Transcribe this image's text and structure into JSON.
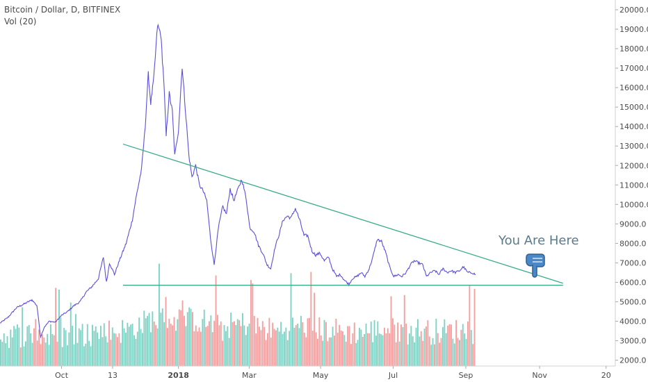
{
  "header": {
    "symbol_line": "Bitcoin / Dollar, D, BITFINEX",
    "volume_line": "Vol (20)"
  },
  "annotation": {
    "text": "You Are Here",
    "icon": "pointing-hand-icon"
  },
  "colors": {
    "price_line": "#5b4fd6",
    "trend_line": "#3aaa8a",
    "vol_up": "#7fd3c4",
    "vol_down": "#f5a0a0",
    "annotation_text": "#5a7a8a",
    "hand_icon": "#4a88c8"
  },
  "chart_data": {
    "type": "line",
    "y_ticks": [
      "2000.0",
      "3000.0",
      "4000.0",
      "5000.0",
      "6000.0",
      "7000.0",
      "8000.0",
      "9000.0",
      "10000.0",
      "11000.0",
      "12000.0",
      "13000.0",
      "14000.0",
      "15000.0",
      "16000.0",
      "17000.0",
      "18000.0",
      "19000.0",
      "20000.0"
    ],
    "x_ticks": [
      {
        "label": "Oct",
        "t": 0.1,
        "bold": false
      },
      {
        "label": "13",
        "t": 0.183,
        "bold": false
      },
      {
        "label": "2018",
        "t": 0.29,
        "bold": true
      },
      {
        "label": "Mar",
        "t": 0.405,
        "bold": false
      },
      {
        "label": "May",
        "t": 0.521,
        "bold": false
      },
      {
        "label": "Jul",
        "t": 0.639,
        "bold": false
      },
      {
        "label": "Sep",
        "t": 0.757,
        "bold": false
      },
      {
        "label": "Nov",
        "t": 0.877,
        "bold": false
      },
      {
        "label": "20",
        "t": 0.985,
        "bold": false
      }
    ],
    "ylim": [
      1700,
      20500
    ],
    "price": [
      [
        0.0,
        3900
      ],
      [
        0.013,
        4200
      ],
      [
        0.027,
        4700
      ],
      [
        0.04,
        4900
      ],
      [
        0.052,
        5100
      ],
      [
        0.06,
        4800
      ],
      [
        0.066,
        3200
      ],
      [
        0.072,
        3700
      ],
      [
        0.08,
        4000
      ],
      [
        0.09,
        3950
      ],
      [
        0.1,
        4300
      ],
      [
        0.11,
        4500
      ],
      [
        0.12,
        4800
      ],
      [
        0.13,
        5000
      ],
      [
        0.14,
        5500
      ],
      [
        0.15,
        5800
      ],
      [
        0.16,
        6200
      ],
      [
        0.168,
        7300
      ],
      [
        0.173,
        6000
      ],
      [
        0.178,
        7000
      ],
      [
        0.186,
        6400
      ],
      [
        0.195,
        7200
      ],
      [
        0.205,
        8000
      ],
      [
        0.215,
        9200
      ],
      [
        0.222,
        10500
      ],
      [
        0.23,
        11800
      ],
      [
        0.236,
        14000
      ],
      [
        0.241,
        16700
      ],
      [
        0.245,
        15200
      ],
      [
        0.25,
        16500
      ],
      [
        0.256,
        19200
      ],
      [
        0.261,
        18800
      ],
      [
        0.266,
        16500
      ],
      [
        0.27,
        13500
      ],
      [
        0.275,
        15700
      ],
      [
        0.28,
        14800
      ],
      [
        0.284,
        12500
      ],
      [
        0.29,
        13800
      ],
      [
        0.296,
        17100
      ],
      [
        0.301,
        15000
      ],
      [
        0.307,
        12500
      ],
      [
        0.312,
        11400
      ],
      [
        0.318,
        12000
      ],
      [
        0.324,
        11000
      ],
      [
        0.33,
        10700
      ],
      [
        0.336,
        10200
      ],
      [
        0.342,
        8300
      ],
      [
        0.348,
        6900
      ],
      [
        0.355,
        8800
      ],
      [
        0.362,
        9900
      ],
      [
        0.368,
        9500
      ],
      [
        0.374,
        10800
      ],
      [
        0.38,
        10200
      ],
      [
        0.387,
        10800
      ],
      [
        0.393,
        11300
      ],
      [
        0.4,
        10300
      ],
      [
        0.406,
        8800
      ],
      [
        0.413,
        8600
      ],
      [
        0.42,
        7900
      ],
      [
        0.427,
        7500
      ],
      [
        0.434,
        6900
      ],
      [
        0.44,
        6700
      ],
      [
        0.447,
        7800
      ],
      [
        0.454,
        8500
      ],
      [
        0.46,
        9200
      ],
      [
        0.467,
        9400
      ],
      [
        0.473,
        9300
      ],
      [
        0.48,
        9800
      ],
      [
        0.487,
        9200
      ],
      [
        0.494,
        8400
      ],
      [
        0.5,
        8400
      ],
      [
        0.507,
        7600
      ],
      [
        0.513,
        7400
      ],
      [
        0.52,
        7500
      ],
      [
        0.527,
        7100
      ],
      [
        0.534,
        7300
      ],
      [
        0.54,
        6700
      ],
      [
        0.547,
        6300
      ],
      [
        0.553,
        6400
      ],
      [
        0.56,
        6100
      ],
      [
        0.567,
        5900
      ],
      [
        0.573,
        6200
      ],
      [
        0.58,
        6300
      ],
      [
        0.587,
        6500
      ],
      [
        0.593,
        6300
      ],
      [
        0.6,
        6700
      ],
      [
        0.606,
        7300
      ],
      [
        0.613,
        8200
      ],
      [
        0.62,
        8100
      ],
      [
        0.627,
        7500
      ],
      [
        0.633,
        6800
      ],
      [
        0.64,
        6300
      ],
      [
        0.647,
        6400
      ],
      [
        0.653,
        6300
      ],
      [
        0.66,
        6500
      ],
      [
        0.667,
        6900
      ],
      [
        0.673,
        7100
      ],
      [
        0.68,
        7000
      ],
      [
        0.687,
        6900
      ],
      [
        0.693,
        6300
      ],
      [
        0.7,
        6500
      ],
      [
        0.707,
        6600
      ],
      [
        0.713,
        6400
      ],
      [
        0.72,
        6700
      ],
      [
        0.727,
        6500
      ],
      [
        0.733,
        6600
      ],
      [
        0.74,
        6500
      ],
      [
        0.747,
        6600
      ],
      [
        0.753,
        6800
      ],
      [
        0.76,
        6500
      ],
      [
        0.767,
        6500
      ],
      [
        0.773,
        6400
      ]
    ],
    "trend_lines": [
      {
        "name": "",
        "points": [
          [
            0.2,
            13100
          ],
          [
            0.915,
            5950
          ]
        ]
      },
      {
        "name": "",
        "points": [
          [
            0.2,
            5850
          ],
          [
            0.915,
            5850
          ]
        ]
      }
    ]
  }
}
